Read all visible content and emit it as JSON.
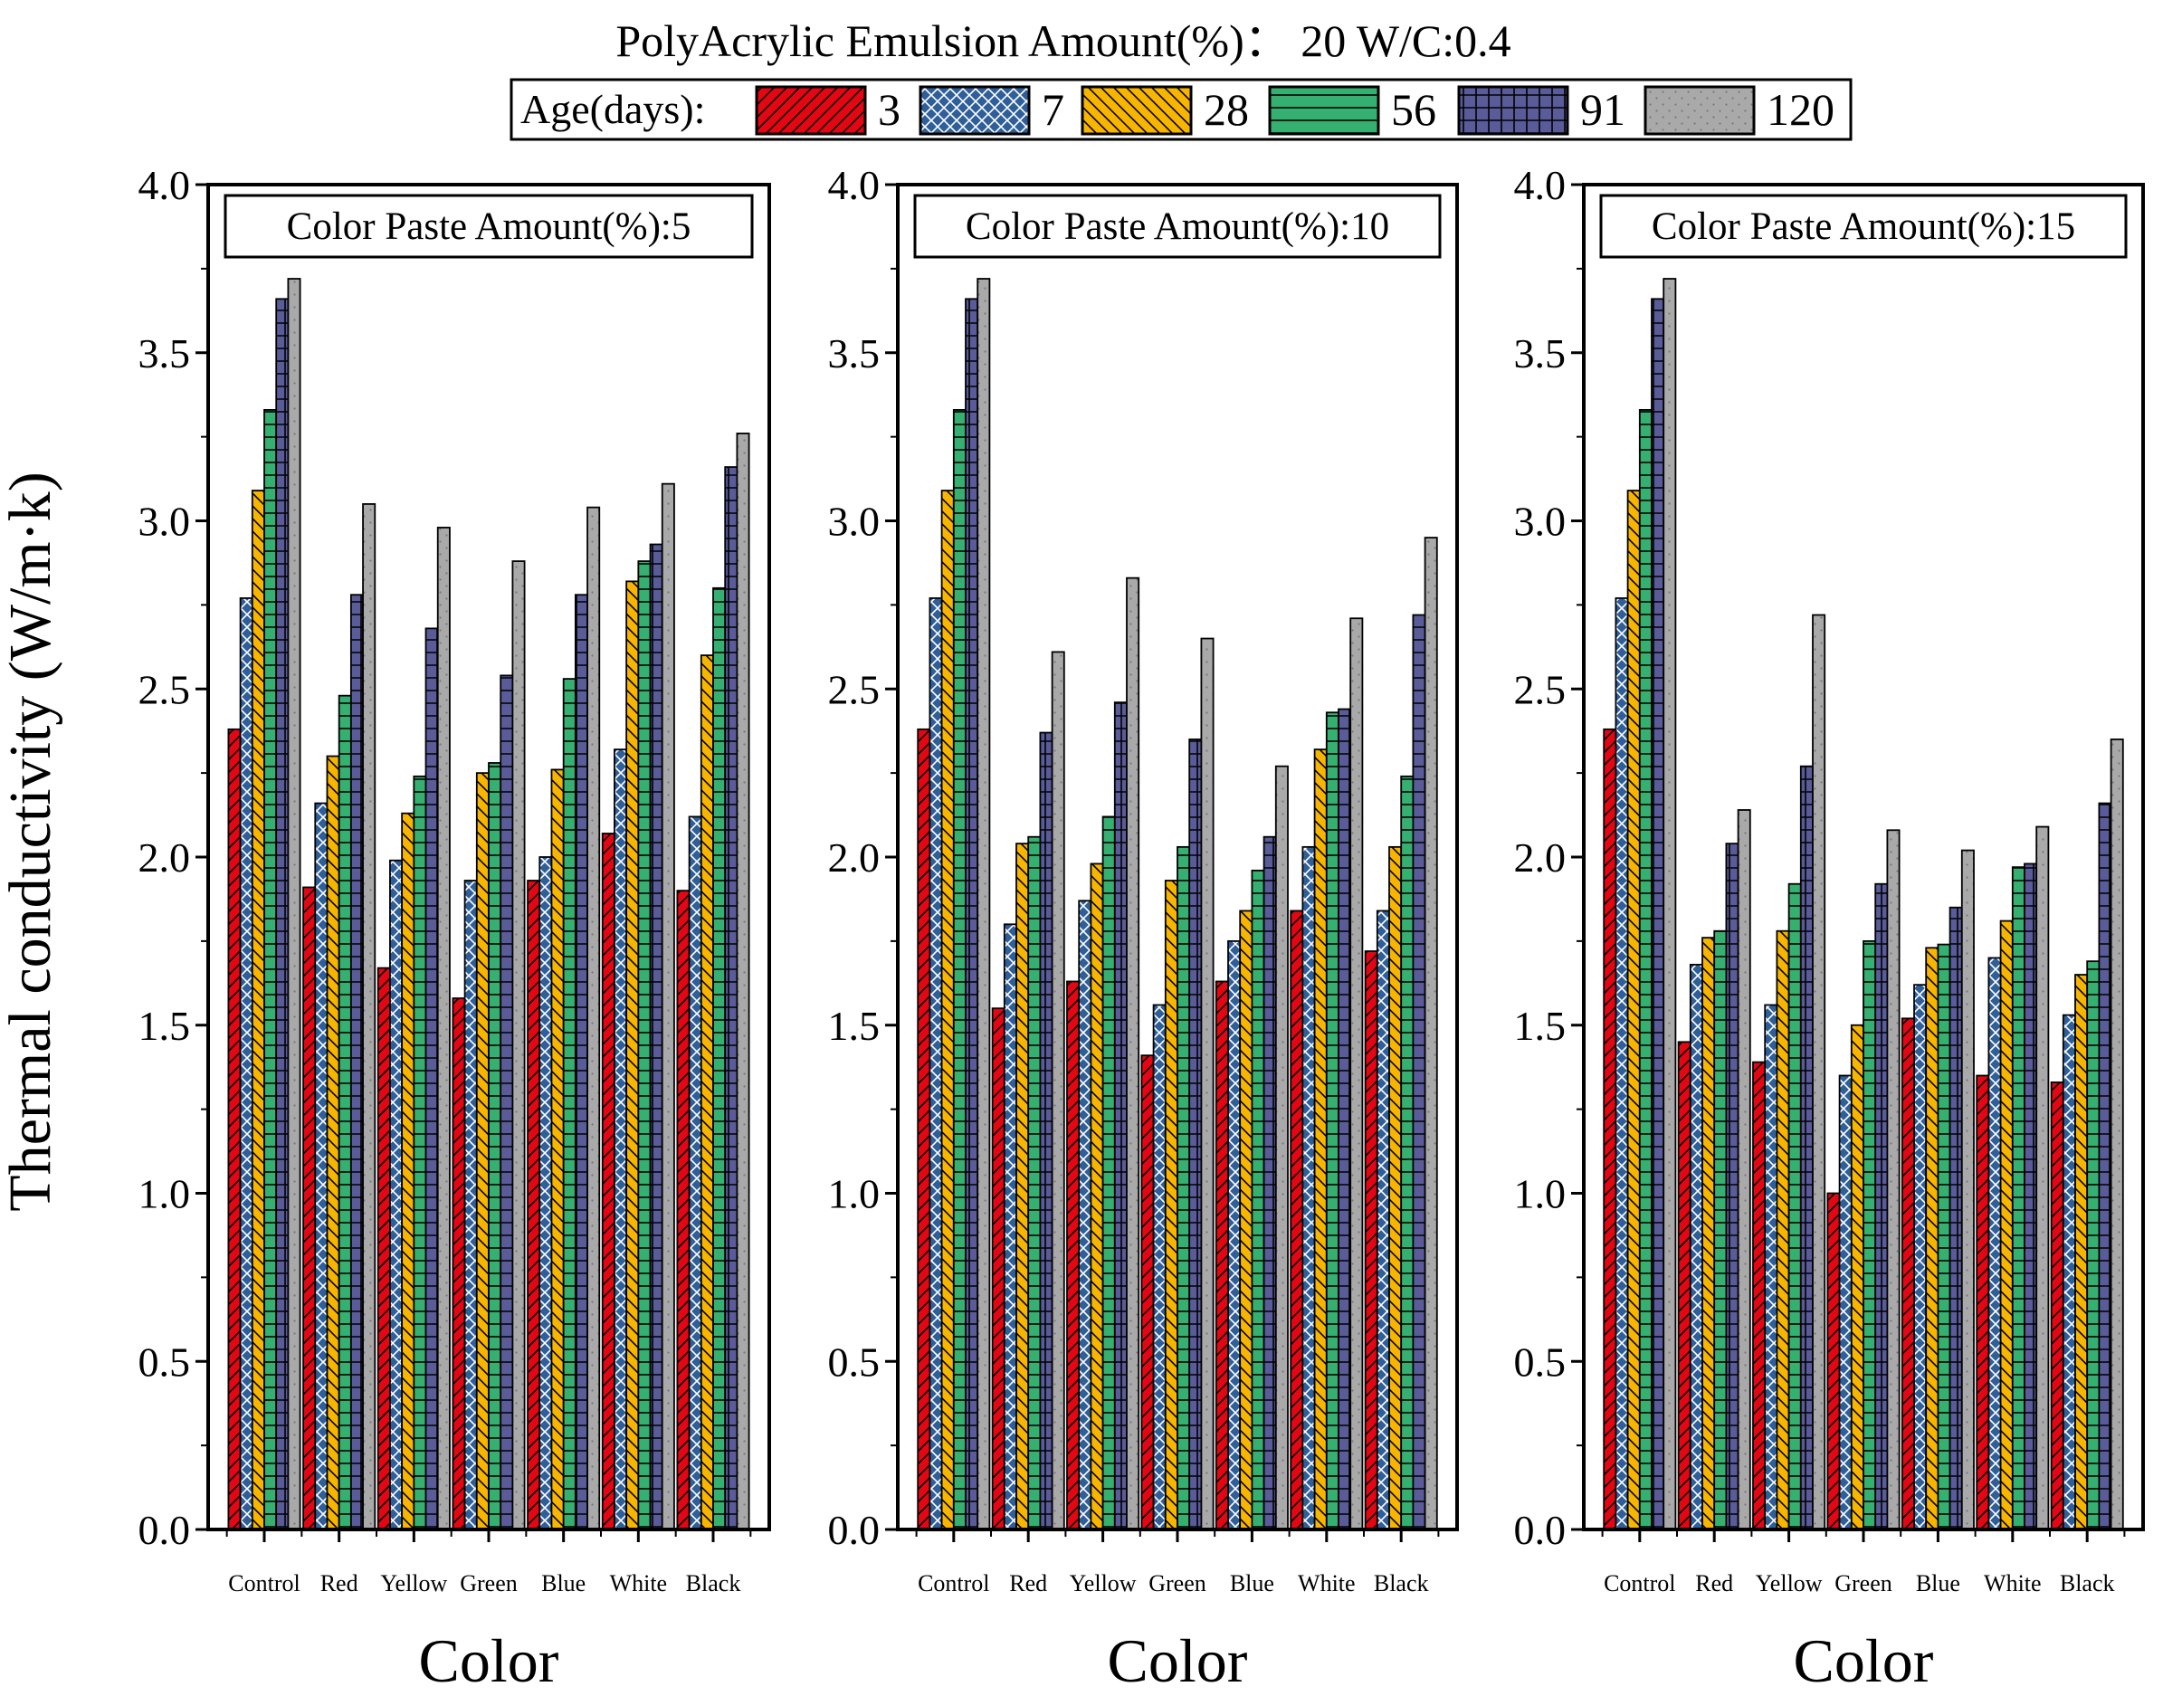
{
  "title": "PolyAcrylic Emulsion Amount(%)：  20  W/C:0.4",
  "ylabel": "Thermal conductivity (W/m·k)",
  "colors": {
    "3": "#e30613",
    "7": "#2f5f99",
    "28": "#f7b500",
    "56": "#35b070",
    "91": "#5a5b99",
    "120": "#a9a9a9"
  },
  "chart_data": [
    {
      "type": "bar",
      "title": "Color Paste Amount(%):5",
      "xlabel": "Color",
      "ylabel": "Thermal conductivity (W/m·k)",
      "ylim": [
        0,
        4.0
      ],
      "yticks": [
        "0.0",
        "0.5",
        "1.0",
        "1.5",
        "2.0",
        "2.5",
        "3.0",
        "3.5",
        "4.0"
      ],
      "categories": [
        "Control",
        "Red",
        "Yellow",
        "Green",
        "Blue",
        "White",
        "Black"
      ],
      "legend_title": "Age(days):",
      "series": [
        {
          "name": "3",
          "values": [
            2.38,
            1.91,
            1.67,
            1.58,
            1.93,
            2.07,
            1.9
          ]
        },
        {
          "name": "7",
          "values": [
            2.77,
            2.16,
            1.99,
            1.93,
            2.0,
            2.32,
            2.12
          ]
        },
        {
          "name": "28",
          "values": [
            3.09,
            2.3,
            2.13,
            2.25,
            2.26,
            2.82,
            2.6
          ]
        },
        {
          "name": "56",
          "values": [
            3.33,
            2.48,
            2.24,
            2.28,
            2.53,
            2.88,
            2.8
          ]
        },
        {
          "name": "91",
          "values": [
            3.66,
            2.78,
            2.68,
            2.54,
            2.78,
            2.93,
            3.16
          ]
        },
        {
          "name": "120",
          "values": [
            3.72,
            3.05,
            2.98,
            2.88,
            3.04,
            3.11,
            3.26
          ]
        }
      ]
    },
    {
      "type": "bar",
      "title": "Color Paste Amount(%):10",
      "xlabel": "Color",
      "ylabel": "Thermal conductivity (W/m·k)",
      "ylim": [
        0,
        4.0
      ],
      "yticks": [
        "0.0",
        "0.5",
        "1.0",
        "1.5",
        "2.0",
        "2.5",
        "3.0",
        "3.5",
        "4.0"
      ],
      "categories": [
        "Control",
        "Red",
        "Yellow",
        "Green",
        "Blue",
        "White",
        "Black"
      ],
      "legend_title": "Age(days):",
      "series": [
        {
          "name": "3",
          "values": [
            2.38,
            1.55,
            1.63,
            1.41,
            1.63,
            1.84,
            1.72
          ]
        },
        {
          "name": "7",
          "values": [
            2.77,
            1.8,
            1.87,
            1.56,
            1.75,
            2.03,
            1.84
          ]
        },
        {
          "name": "28",
          "values": [
            3.09,
            2.04,
            1.98,
            1.93,
            1.84,
            2.32,
            2.03
          ]
        },
        {
          "name": "56",
          "values": [
            3.33,
            2.06,
            2.12,
            2.03,
            1.96,
            2.43,
            2.24
          ]
        },
        {
          "name": "91",
          "values": [
            3.66,
            2.37,
            2.46,
            2.35,
            2.06,
            2.44,
            2.72
          ]
        },
        {
          "name": "120",
          "values": [
            3.72,
            2.61,
            2.83,
            2.65,
            2.27,
            2.71,
            2.95
          ]
        }
      ]
    },
    {
      "type": "bar",
      "title": "Color Paste Amount(%):15",
      "xlabel": "Color",
      "ylabel": "Thermal conductivity (W/m·k)",
      "ylim": [
        0,
        4.0
      ],
      "yticks": [
        "0.0",
        "0.5",
        "1.0",
        "1.5",
        "2.0",
        "2.5",
        "3.0",
        "3.5",
        "4.0"
      ],
      "categories": [
        "Control",
        "Red",
        "Yellow",
        "Green",
        "Blue",
        "White",
        "Black"
      ],
      "legend_title": "Age(days):",
      "series": [
        {
          "name": "3",
          "values": [
            2.38,
            1.45,
            1.39,
            1.0,
            1.52,
            1.35,
            1.33
          ]
        },
        {
          "name": "7",
          "values": [
            2.77,
            1.68,
            1.56,
            1.35,
            1.62,
            1.7,
            1.53
          ]
        },
        {
          "name": "28",
          "values": [
            3.09,
            1.76,
            1.78,
            1.5,
            1.73,
            1.81,
            1.65
          ]
        },
        {
          "name": "56",
          "values": [
            3.33,
            1.78,
            1.92,
            1.75,
            1.74,
            1.97,
            1.69
          ]
        },
        {
          "name": "91",
          "values": [
            3.66,
            2.04,
            2.27,
            1.92,
            1.85,
            1.98,
            2.16
          ]
        },
        {
          "name": "120",
          "values": [
            3.72,
            2.14,
            2.72,
            2.08,
            2.02,
            2.09,
            2.35
          ]
        }
      ]
    }
  ]
}
